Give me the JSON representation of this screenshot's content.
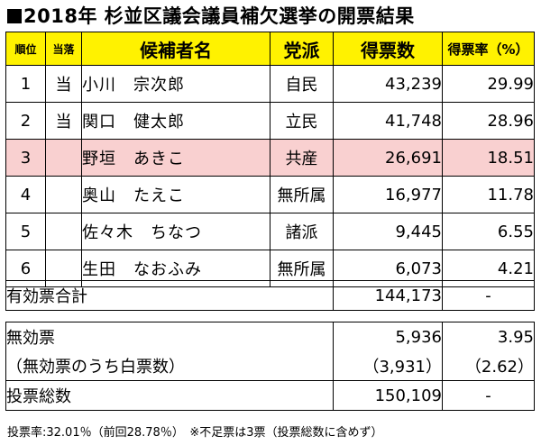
{
  "title": "2018年 杉並区議会議員補欠選挙の開票結果",
  "headers": {
    "rank": "順位",
    "result": "当落",
    "candidate": "候補者名",
    "party": "党派",
    "votes": "得票数",
    "rate": "得票率（%）"
  },
  "candidates": [
    {
      "rank": "1",
      "result": "当",
      "name": "小川　宗次郎",
      "party": "自民",
      "votes": "43,239",
      "rate": "29.99"
    },
    {
      "rank": "2",
      "result": "当",
      "name": "関口　健太郎",
      "party": "立民",
      "votes": "41,748",
      "rate": "28.96"
    },
    {
      "rank": "3",
      "result": "",
      "name": "野垣　あきこ",
      "party": "共産",
      "votes": "26,691",
      "rate": "18.51"
    },
    {
      "rank": "4",
      "result": "",
      "name": "奥山　たえこ",
      "party": "無所属",
      "votes": "16,977",
      "rate": "11.78"
    },
    {
      "rank": "5",
      "result": "",
      "name": "佐々木　ちなつ",
      "party": "諸派",
      "votes": "9,445",
      "rate": "6.55"
    },
    {
      "rank": "6",
      "result": "",
      "name": "生田　なおふみ",
      "party": "無所属",
      "votes": "6,073",
      "rate": "4.21"
    }
  ],
  "highlight_color": "#f9d0d0",
  "header_color": "#fff200",
  "totals": {
    "valid_label": "有効票合計",
    "valid_votes": "144,173",
    "valid_rate": "-",
    "invalid_label": "無効票",
    "invalid_votes": "5,936",
    "invalid_rate": "3.95",
    "blank_label": "（無効票のうち白票数）",
    "blank_votes": "（3,931）",
    "blank_rate": "（2.62）",
    "total_label": "投票総数",
    "total_votes": "150,109",
    "total_rate": "-"
  },
  "footnote": "投票率:32.01％（前回28.78％）　※不足票は3票（投票総数に含めず）"
}
